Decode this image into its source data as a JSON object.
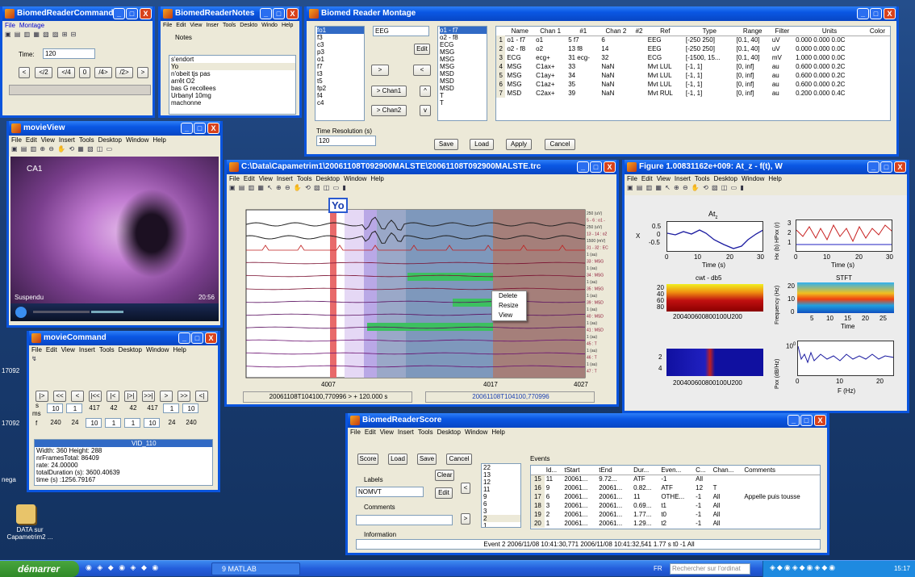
{
  "desktop": {
    "icon_label": "DATA sur Capametrim2 ...",
    "edge_texts": [
      "17092",
      "17092",
      "nega"
    ]
  },
  "command": {
    "title": "BiomedReaderCommand",
    "menu": [
      "File",
      "Montage"
    ],
    "time_label": "Time:",
    "time_value": "120",
    "nav": [
      "<",
      "</2",
      "</4",
      "0",
      "/4>",
      "/2>",
      ">"
    ]
  },
  "notes": {
    "title": "BiomedReaderNotes",
    "menu": [
      "File",
      "Edit",
      "View",
      "Inser",
      "Tools",
      "Deskto",
      "Windo",
      "Help"
    ],
    "notes_label": "Notes",
    "items": [
      "s'endort",
      "Yo",
      "n'obeit tjs pas",
      "arrêt O2",
      "bas G recollees",
      "Urbanyl 10mg",
      "machonne"
    ]
  },
  "montage": {
    "title": "Biomed Reader Montage",
    "channels": [
      "fo1",
      "f3",
      "c3",
      "p3",
      "o1",
      "f7",
      "t3",
      "t5",
      "fp2",
      "f4",
      "c4"
    ],
    "type_select": "EEG",
    "edit_btn": "Edit",
    "arrow_right": ">",
    "arrow_left": "<",
    "chan1_btn": "> Chan1",
    "chan2_btn": "> Chan2",
    "up": "^",
    "down": "v",
    "selected": [
      "o1 - f7",
      "o2 - f8",
      "ECG",
      "MSG",
      "MSG",
      "MSG",
      "MSD",
      "MSD",
      "MSD",
      "T",
      "T"
    ],
    "table_headers": [
      "Name",
      "Chan 1",
      "#1",
      "Chan 2",
      "#2",
      "Ref",
      "Type",
      "Range",
      "Filter",
      "Units",
      "Color"
    ],
    "rows": [
      [
        "1",
        "o1 - f7",
        "o1",
        "5 f7",
        "6",
        "",
        "EEG",
        "[-250 250]",
        "[0.1, 40]",
        "uV",
        "0.000 0.000 0.0C"
      ],
      [
        "2",
        "o2 - f8",
        "o2",
        "13 f8",
        "14",
        "",
        "EEG",
        "[-250 250]",
        "[0.1, 40]",
        "uV",
        "0.000 0.000 0.0C"
      ],
      [
        "3",
        "ECG",
        "ecg+",
        "31 ecg-",
        "32",
        "",
        "ECG",
        "[-1500, 15...",
        "[0.1, 40]",
        "mV",
        "1.000 0.000 0.0C"
      ],
      [
        "4",
        "MSG",
        "C1ax+",
        "33",
        "NaN",
        "",
        "Mvt LUL",
        "[-1, 1]",
        "[0, inf]",
        "au",
        "0.600 0.000 0.2C"
      ],
      [
        "5",
        "MSG",
        "C1ay+",
        "34",
        "NaN",
        "",
        "Mvt LUL",
        "[-1, 1]",
        "[0, inf]",
        "au",
        "0.600 0.000 0.2C"
      ],
      [
        "6",
        "MSG",
        "C1az+",
        "35",
        "NaN",
        "",
        "Mvt LUL",
        "[-1, 1]",
        "[0, inf]",
        "au",
        "0.600 0.000 0.2C"
      ],
      [
        "7",
        "MSD",
        "C2ax+",
        "39",
        "NaN",
        "",
        "Mvt RUL",
        "[-1, 1]",
        "[0, inf]",
        "au",
        "0.200 0.000 0.4C"
      ]
    ],
    "time_res_label": "Time Resolution (s)",
    "time_res_value": "120",
    "buttons": [
      "Save",
      "Load",
      "Apply",
      "Cancel"
    ]
  },
  "movieview": {
    "title": "movieView",
    "menu": [
      "File",
      "Edit",
      "View",
      "Insert",
      "Tools",
      "Desktop",
      "Window",
      "Help"
    ],
    "overlay_tl": "CA1",
    "overlay_bl": "Suspendu",
    "overlay_br": "20:56"
  },
  "moviecmd": {
    "title": "movieCommand",
    "menu": [
      "File",
      "Edit",
      "View",
      "Insert",
      "Tools",
      "Desktop",
      "Window",
      "Help"
    ],
    "nav": [
      "|>",
      "<<",
      "<",
      "|<<",
      "|<",
      "|>|",
      ">>|",
      ">",
      ">>",
      "<|"
    ],
    "s_label": "s",
    "ms_label": "ms",
    "f_label": "f",
    "s_vals": [
      "10",
      "1",
      "417",
      "42",
      "42",
      "417",
      "1",
      "10"
    ],
    "f_vals": [
      "240",
      "24",
      "10",
      "1",
      "1",
      "10",
      "24",
      "240"
    ],
    "info_header": "VID_110",
    "info": [
      "Width: 360 Height: 288",
      "nrFramesTotal: 86409",
      "rate: 24.00000",
      "totalDuration (s): 3600.40639",
      "time (s) :1256.79167"
    ]
  },
  "trc": {
    "title": "C:\\Data\\Capametrim1\\20061108T092900MALSTE\\20061108T092900MALSTE.trc",
    "menu": [
      "File",
      "Edit",
      "View",
      "Insert",
      "Tools",
      "Desktop",
      "Window",
      "Help"
    ],
    "marker": "Yo",
    "ctx_menu": [
      "Delete",
      "Resize",
      "View"
    ],
    "xticks": [
      "4007",
      "4017",
      "4027"
    ],
    "status_left": "20061108T104100,770996 > + 120.000 s",
    "status_right": "20061108T104100,770996",
    "right_labels": [
      "250 (uV)",
      "5 - 6 : o1 -",
      "250 (uV)",
      "13 - 14 : o2",
      "1500 (mV)",
      "31 - 32 : EC",
      "1 (au)",
      "33 : MSG",
      "1 (au)",
      "34 : MSG",
      "1 (au)",
      "35 : MSG",
      "1 (au)",
      "39 : MSD",
      "1 (au)",
      "40 : MSD",
      "1 (au)",
      "41 : MSD",
      "1 (au)",
      "45 : T",
      "1 (au)",
      "46 : T",
      "1 (au)",
      "47 : T"
    ]
  },
  "figure": {
    "title": "Figure 1.00831162e+009: At_z - f(t), W",
    "menu": [
      "File",
      "Edit",
      "View",
      "Insert",
      "Tools",
      "Desktop",
      "Window",
      "Help"
    ],
    "p1_title": "At",
    "p1_sub": "z",
    "p1_ylabel": "X",
    "p1_xlabel": "Time (s)",
    "p1_yticks": [
      "0.5",
      "0",
      "-0.5"
    ],
    "p1_xticks": [
      "0",
      "10",
      "20",
      "30"
    ],
    "p2_ylabel": "Hx (b) HPxx (r)",
    "p2_xlabel": "Time (s)",
    "p2_yticks": [
      "3",
      "2",
      "1"
    ],
    "p2_xticks": [
      "0",
      "10",
      "20",
      "30"
    ],
    "p3_title": "cwt - db5",
    "p3_yticks": [
      "20",
      "40",
      "60",
      "80"
    ],
    "p3_xticks": "200400600800100U200",
    "p4_title": "STFT",
    "p4_ylabel": "Frequency (Hz)",
    "p4_xlabel": "Time",
    "p4_yticks": [
      "20",
      "10",
      "0"
    ],
    "p4_xticks": [
      "5",
      "10",
      "15",
      "20",
      "25"
    ],
    "p5_yticks": [
      "2",
      "4"
    ],
    "p5_xticks": "200400600800100U200",
    "p6_ylabel": "Pxx (dB/Hz)",
    "p6_xlabel": "F (Hz)",
    "p6_ytick": "10",
    "p6_yexp": "0",
    "p6_xticks": [
      "0",
      "10",
      "20"
    ]
  },
  "score": {
    "title": "BiomedReaderScore",
    "menu": [
      "File",
      "Edit",
      "View",
      "Insert",
      "Tools",
      "Desktop",
      "Window",
      "Help"
    ],
    "buttons": [
      "Score",
      "Load",
      "Save",
      "Cancel"
    ],
    "clear": "Clear",
    "labels_label": "Labels",
    "labels_value": "NOMVT",
    "edit": "Edit",
    "comments_label": "Comments",
    "information_label": "Information",
    "list": [
      "22",
      "13",
      "12",
      "11",
      "9",
      "6",
      "3",
      "2",
      "1"
    ],
    "events_label": "Events",
    "headers": [
      "",
      "Id...",
      "tStart",
      "tEnd",
      "Dur...",
      "Even...",
      "C...",
      "Chan...",
      "Comments"
    ],
    "rows": [
      [
        "15",
        "11",
        "20061...",
        "9.72...",
        "ATF",
        "-1",
        "All",
        ""
      ],
      [
        "16",
        "9",
        "20061...",
        "20061...",
        "0.82...",
        "ATF",
        "12",
        "T"
      ],
      [
        "17",
        "6",
        "20061...",
        "20061...",
        "11",
        "OTHE...",
        "-1",
        "All",
        "Appelle puis tousse"
      ],
      [
        "18",
        "3",
        "20061...",
        "20061...",
        "0.69...",
        "t1",
        "-1",
        "All"
      ],
      [
        "19",
        "2",
        "20061...",
        "20061...",
        "1.77...",
        "t0",
        "-1",
        "All"
      ],
      [
        "20",
        "1",
        "20061...",
        "20061...",
        "1.29...",
        "t2",
        "-1",
        "All"
      ]
    ],
    "info_text": "Event  2 2006/11/08 10:41:30,771  2006/11/08 10:41:32,541  1.77 s  t0  -1  All"
  },
  "taskbar": {
    "start": "démarrer",
    "task": "9 MATLAB",
    "lang": "FR",
    "search_placeholder": "Rechercher sur l'ordinat",
    "clock": "15:17"
  },
  "colors": {
    "title_blue": "#0a57e3",
    "close_red": "#d8421c",
    "start_green": "#2f8a28"
  }
}
